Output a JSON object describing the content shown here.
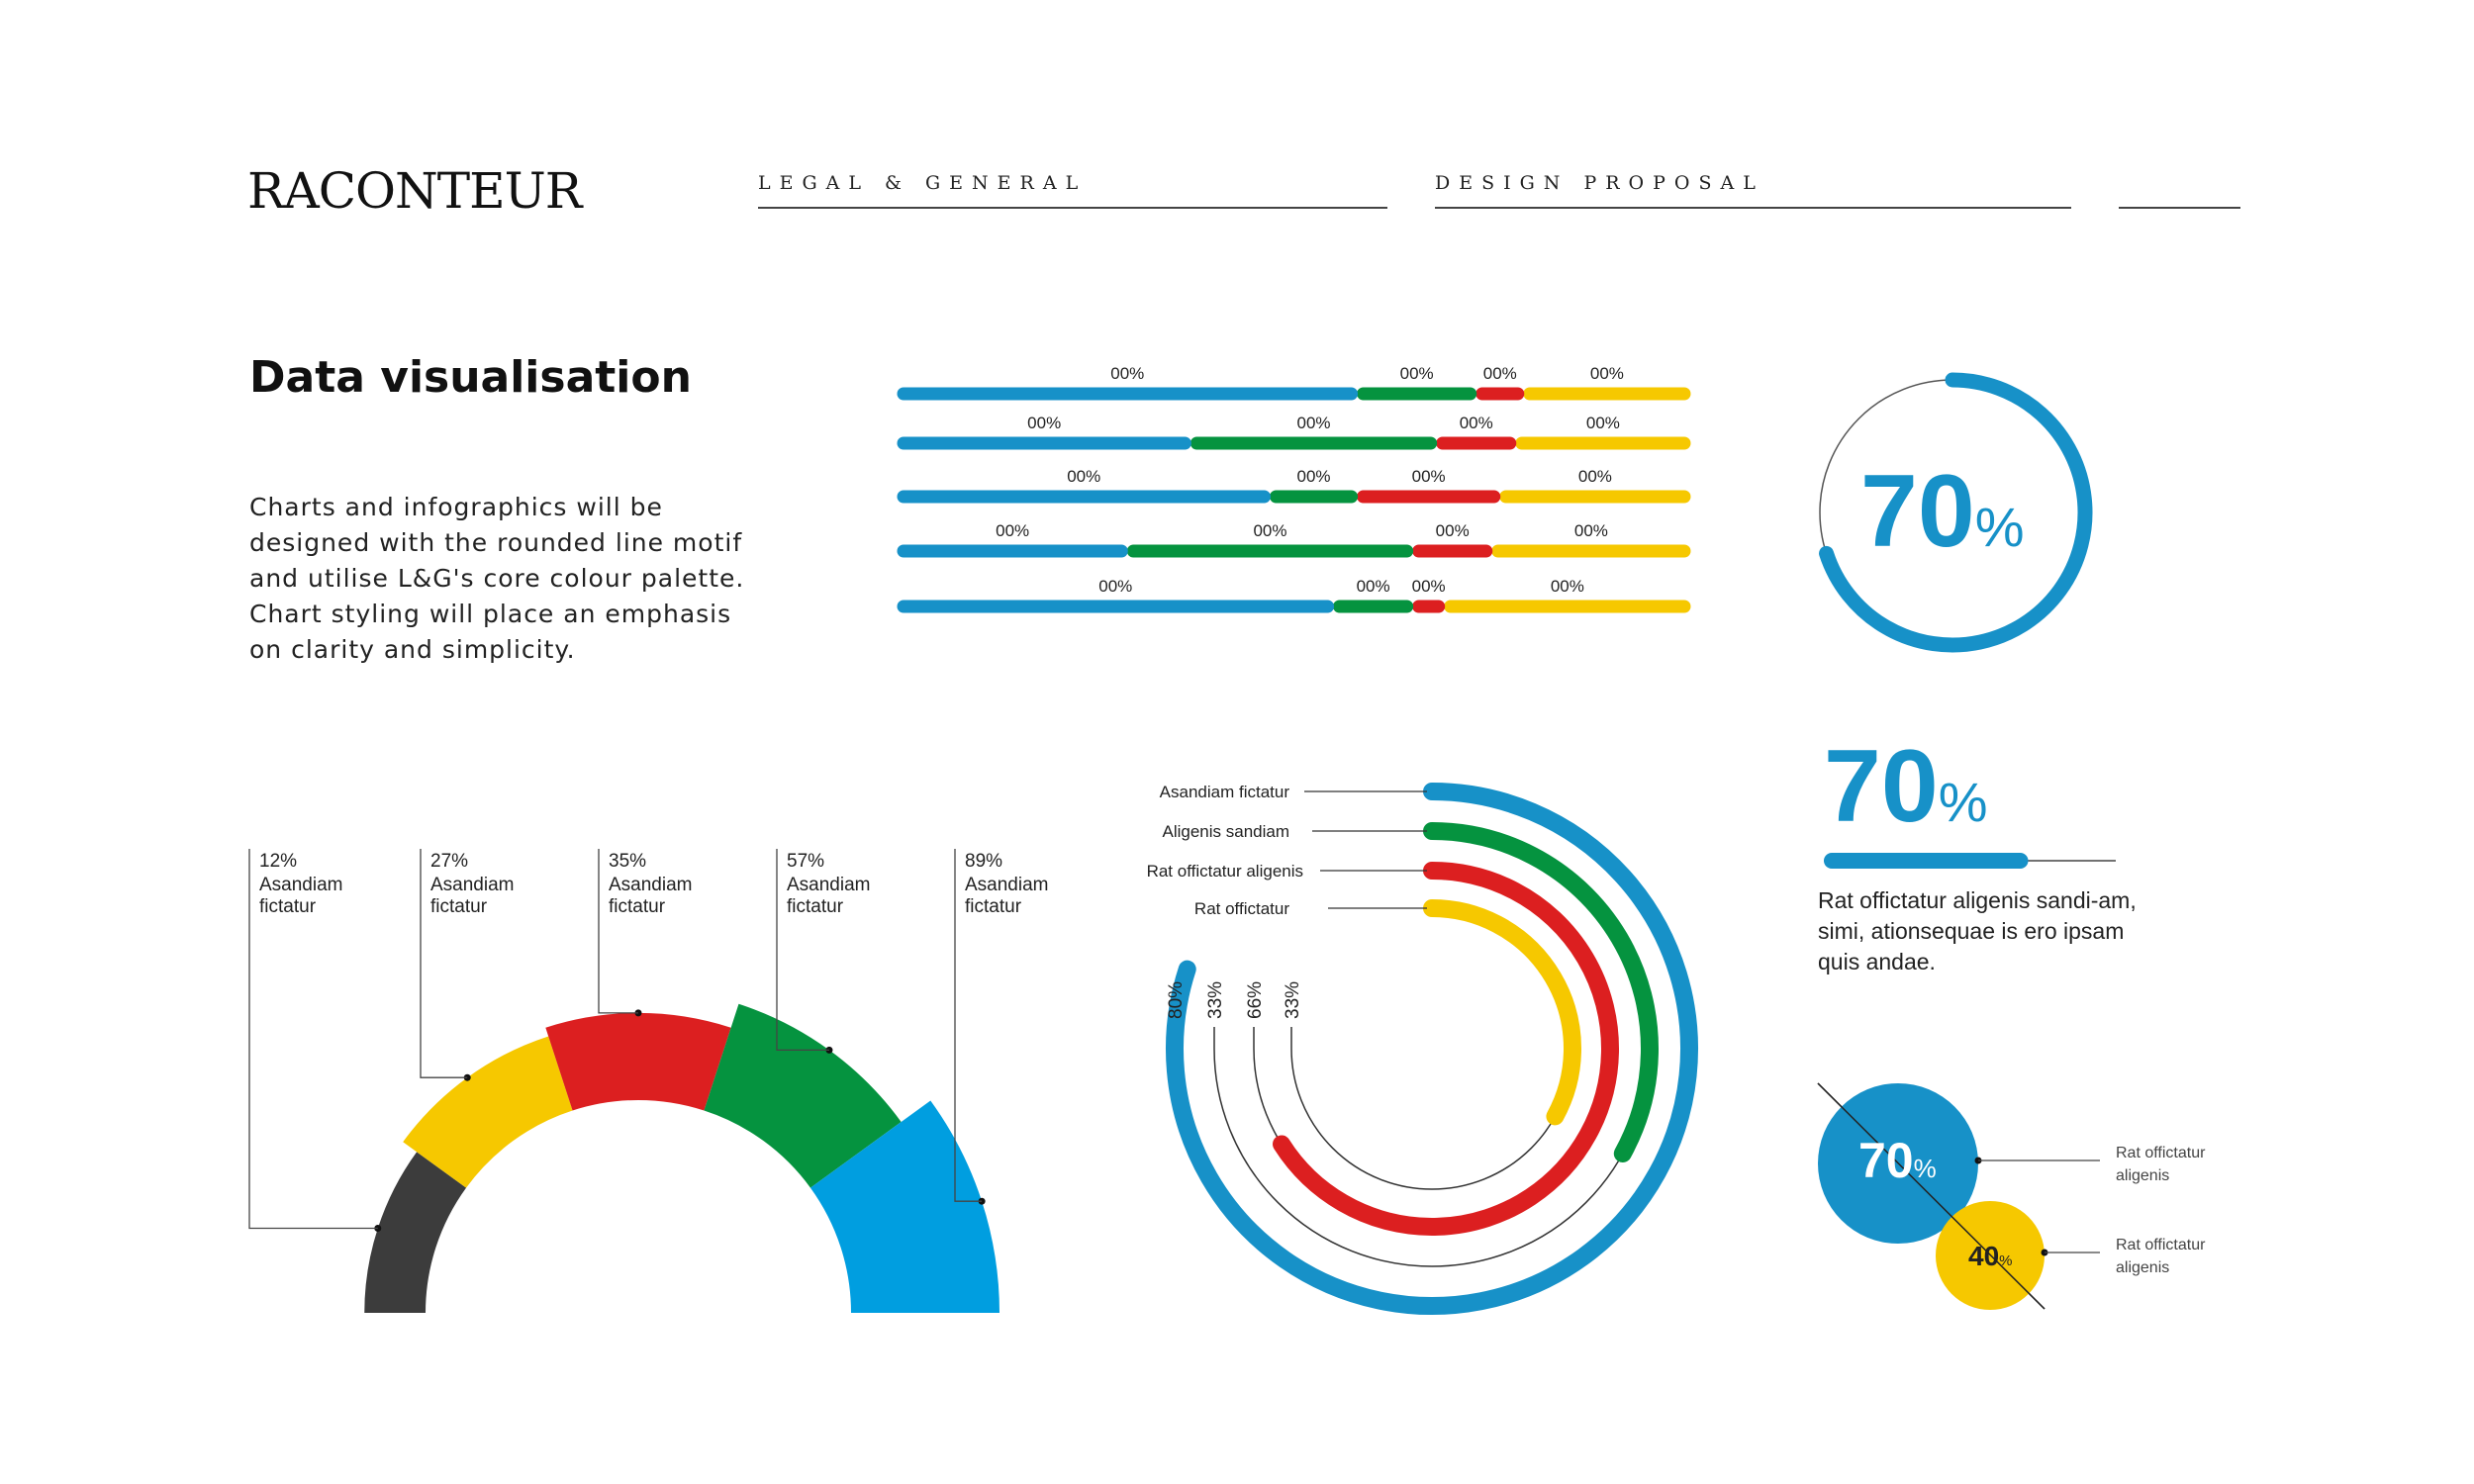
{
  "header": {
    "logo": "RACONTEUR",
    "client": "LEGAL & GENERAL",
    "doc_type": "DESIGN PROPOSAL"
  },
  "title": "Data visualisation",
  "intro": "Charts and infographics will be designed with the rounded line motif and utilise L&G's core colour palette. Chart styling will place an emphasis on clarity and simplicity.",
  "colors": {
    "blue": "#1791c8",
    "green": "#05933f",
    "red": "#dc1f20",
    "yellow": "#f6c800",
    "dark": "#3c3c3c",
    "sky": "#009ee0"
  },
  "stat_text": "Rat offictatur aligenis sandi-am, simi, ationsequae is ero ipsam quis andae.",
  "chart_data": [
    {
      "type": "bar",
      "stacked": true,
      "orientation": "horizontal",
      "series_colors": [
        "#1791c8",
        "#05933f",
        "#dc1f20",
        "#f6c800"
      ],
      "rows": [
        {
          "values": [
            58,
            15,
            6,
            21
          ],
          "labels": [
            "00%",
            "00%",
            "00%",
            "00%"
          ]
        },
        {
          "values": [
            37,
            31,
            10,
            22
          ],
          "labels": [
            "00%",
            "00%",
            "00%",
            "00%"
          ]
        },
        {
          "values": [
            47,
            11,
            18,
            24
          ],
          "labels": [
            "00%",
            "00%",
            "00%",
            "00%"
          ]
        },
        {
          "values": [
            29,
            36,
            10,
            25
          ],
          "labels": [
            "00%",
            "00%",
            "00%",
            "00%"
          ]
        },
        {
          "values": [
            55,
            10,
            4,
            31
          ],
          "labels": [
            "00%",
            "00%",
            "00%",
            "00%"
          ]
        }
      ]
    },
    {
      "type": "pie",
      "style": "progress-ring",
      "value": 70,
      "label_number": "70",
      "label_unit": "%"
    },
    {
      "type": "pie",
      "style": "semi-circle-polar",
      "slices": [
        {
          "value": 12,
          "label_pct": "12%",
          "label_line1": "Asandiam",
          "label_line2": "fictatur",
          "color": "#3c3c3c"
        },
        {
          "value": 27,
          "label_pct": "27%",
          "label_line1": "Asandiam",
          "label_line2": "fictatur",
          "color": "#f6c800"
        },
        {
          "value": 35,
          "label_pct": "35%",
          "label_line1": "Asandiam",
          "label_line2": "fictatur",
          "color": "#dc1f20"
        },
        {
          "value": 57,
          "label_pct": "57%",
          "label_line1": "Asandiam",
          "label_line2": "fictatur",
          "color": "#05933f"
        },
        {
          "value": 89,
          "label_pct": "89%",
          "label_line1": "Asandiam",
          "label_line2": "fictatur",
          "color": "#009ee0"
        }
      ]
    },
    {
      "type": "bar",
      "style": "radial",
      "series": [
        {
          "name": "Asandiam fictatur",
          "value_label": "80%",
          "value": 80,
          "color": "#1791c8"
        },
        {
          "name": "Aligenis sandiam",
          "value_label": "33%",
          "value": 33,
          "color": "#05933f"
        },
        {
          "name": "Rat offictatur aligenis",
          "value_label": "66%",
          "value": 66,
          "color": "#dc1f20"
        },
        {
          "name": "Rat offictatur",
          "value_label": "33%",
          "value": 33,
          "color": "#f6c800"
        }
      ]
    },
    {
      "type": "bar",
      "style": "single-progress",
      "value": 70,
      "label_number": "70",
      "label_unit": "%"
    },
    {
      "type": "scatter",
      "style": "bubbles",
      "bubbles": [
        {
          "value": 70,
          "label_number": "70",
          "label_unit": "%",
          "caption_line1": "Rat offictatur",
          "caption_line2": "aligenis",
          "color": "#1791c8"
        },
        {
          "value": 40,
          "label_number": "40",
          "label_unit": "%",
          "caption_line1": "Rat offictatur",
          "caption_line2": "aligenis",
          "color": "#f6c800"
        }
      ]
    }
  ]
}
